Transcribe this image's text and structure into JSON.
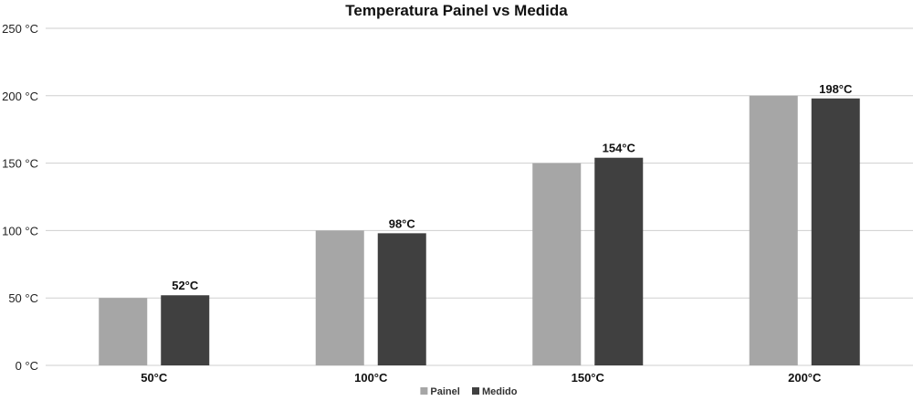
{
  "chart_data": {
    "type": "bar",
    "title": "Temperatura Painel vs Medida",
    "categories": [
      "50°C",
      "100°C",
      "150°C",
      "200°C"
    ],
    "series": [
      {
        "name": "Painel",
        "values": [
          50,
          100,
          150,
          200
        ],
        "color": "#a6a6a6",
        "data_labels": [
          "",
          "",
          "",
          ""
        ]
      },
      {
        "name": "Medido",
        "values": [
          52,
          98,
          154,
          198
        ],
        "color": "#404040",
        "data_labels": [
          "52°C",
          "98°C",
          "154°C",
          "198°C"
        ]
      }
    ],
    "ylim": [
      0,
      250
    ],
    "yticks": [
      0,
      50,
      100,
      150,
      200,
      250
    ],
    "ytick_labels": [
      "0 °C",
      "50 °C",
      "100 °C",
      "150 °C",
      "200 °C",
      "250 °C"
    ],
    "xlabel": "",
    "ylabel": "",
    "grid": true,
    "legend": "bottom-center"
  }
}
